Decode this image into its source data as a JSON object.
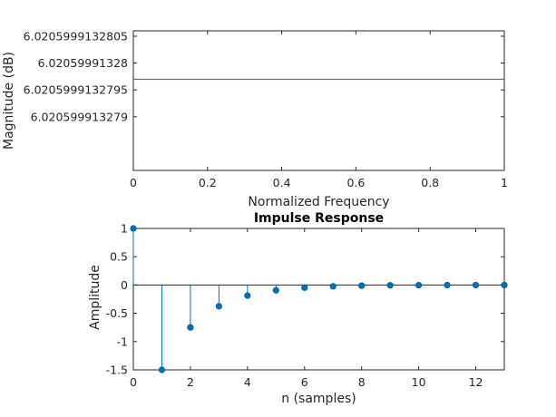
{
  "chart_data": [
    {
      "type": "line",
      "title": "",
      "xlabel": "Normalized Frequency",
      "ylabel": "Magnitude (dB)",
      "xlim": [
        0,
        1
      ],
      "ylim": [
        6.020599913278,
        6.0205999132806
      ],
      "xticks": [
        0,
        0.2,
        0.4,
        0.6,
        0.8,
        1
      ],
      "xtick_labels": [
        "0",
        "0.2",
        "0.4",
        "0.6",
        "0.8",
        "1"
      ],
      "yticks": [
        6.020599913279,
        6.0205999132795,
        6.02059991328,
        6.0205999132805
      ],
      "ytick_labels": [
        "6.020599913279",
        "6.0205999132795",
        "6.02059991328",
        "6.0205999132805"
      ],
      "series": [
        {
          "x": [
            0,
            0.25,
            0.5,
            0.75,
            1
          ],
          "y": [
            6.0205999132797,
            6.0205999132797,
            6.0205999132797,
            6.0205999132797,
            6.0205999132797
          ]
        }
      ],
      "grid": false,
      "color": "#0072bd"
    },
    {
      "type": "stem",
      "title": "Impulse Response",
      "xlabel": "n (samples)",
      "ylabel": "Amplitude",
      "xlim": [
        0,
        13
      ],
      "ylim": [
        -1.5,
        1
      ],
      "xticks": [
        0,
        2,
        4,
        6,
        8,
        10,
        12
      ],
      "xtick_labels": [
        "0",
        "2",
        "4",
        "6",
        "8",
        "10",
        "12"
      ],
      "yticks": [
        -1.5,
        -1,
        -0.5,
        0,
        0.5,
        1
      ],
      "ytick_labels": [
        "-1.5",
        "-1",
        "-0.5",
        "0",
        "0.5",
        "1"
      ],
      "x": [
        0,
        1,
        2,
        3,
        4,
        5,
        6,
        7,
        8,
        9,
        10,
        11,
        12,
        13
      ],
      "values": [
        1,
        -1.5,
        -0.75,
        -0.375,
        -0.1875,
        -0.094,
        -0.047,
        -0.023,
        -0.012,
        -0.006,
        -0.003,
        -0.0015,
        -0.0007,
        -0.0004
      ],
      "grid": false,
      "color": "#0072bd"
    }
  ]
}
